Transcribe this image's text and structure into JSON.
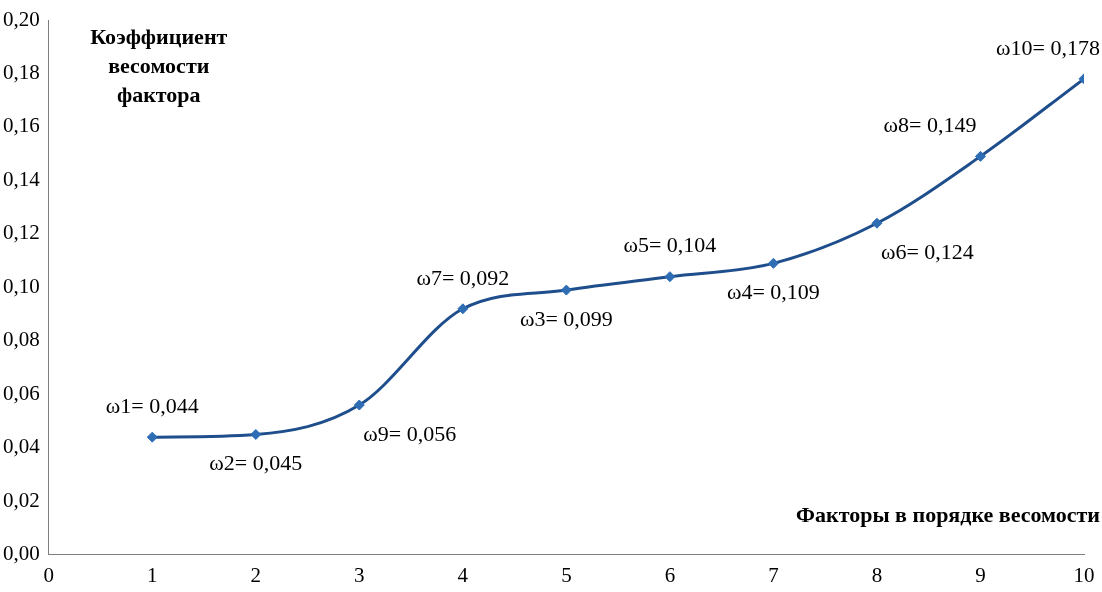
{
  "chart_data": {
    "type": "line",
    "xlabel": "Факторы в порядке весомости",
    "ylabel": "Коэффициент весомости фактора",
    "x": [
      1,
      2,
      3,
      4,
      5,
      6,
      7,
      8,
      9,
      10
    ],
    "series": [
      {
        "color": "#1f4e8c",
        "values": [
          0.044,
          0.045,
          0.056,
          0.092,
          0.099,
          0.104,
          0.109,
          0.124,
          0.149,
          0.178
        ],
        "value_labels": [
          "ω1= 0,044",
          "ω2= 0,045",
          "ω9= 0,056",
          "ω7= 0,092",
          "ω3= 0,099",
          "ω5= 0,104",
          "ω4= 0,109",
          "ω6= 0,124",
          "ω8= 0,149",
          "ω10= 0,178"
        ]
      }
    ],
    "xlim": [
      0,
      10
    ],
    "xticks": [
      0,
      1,
      2,
      3,
      4,
      5,
      6,
      7,
      8,
      9,
      10
    ],
    "ylim": [
      0,
      0.2
    ],
    "yticks": [
      {
        "value": 0,
        "label": "0,00"
      },
      {
        "value": 0.02,
        "label": "0,02"
      },
      {
        "value": 0.04,
        "label": "0,04"
      },
      {
        "value": 0.06,
        "label": "0,06"
      },
      {
        "value": 0.08,
        "label": "0,08"
      },
      {
        "value": 0.1,
        "label": "0,10"
      },
      {
        "value": 0.12,
        "label": "0,12"
      },
      {
        "value": 0.14,
        "label": "0,14"
      },
      {
        "value": 0.16,
        "label": "0,16"
      },
      {
        "value": 0.18,
        "label": "0,18"
      },
      {
        "value": 0.2,
        "label": "0,20"
      }
    ],
    "grid": false,
    "legend": false,
    "marker": "diamond",
    "line_style": "solid"
  }
}
